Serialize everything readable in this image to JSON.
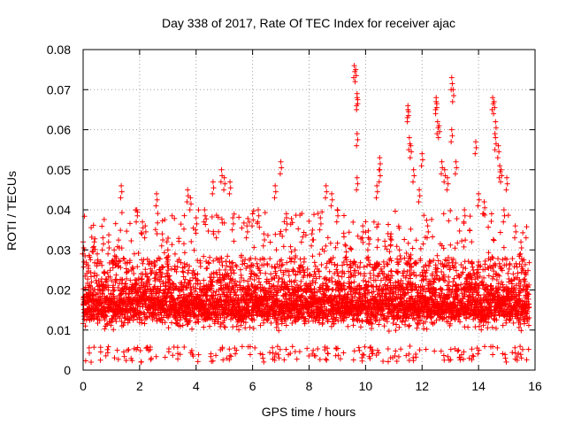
{
  "chart_data": {
    "type": "scatter",
    "title": "Day 338 of 2017, Rate Of TEC Index for receiver ajac",
    "xlabel": "GPS time / hours",
    "ylabel": "ROTI / TECUs",
    "xlim": [
      0,
      16
    ],
    "ylim": [
      0,
      0.08
    ],
    "xticks": [
      0,
      2,
      4,
      6,
      8,
      10,
      12,
      14,
      16
    ],
    "yticks": [
      0,
      0.01,
      0.02,
      0.03,
      0.04,
      0.05,
      0.06,
      0.07,
      0.08
    ],
    "xtick_labels": [
      "0",
      "2",
      "4",
      "6",
      "8",
      "10",
      "12",
      "14",
      "16"
    ],
    "ytick_labels": [
      "0",
      "0.01",
      "0.02",
      "0.03",
      "0.04",
      "0.05",
      "0.06",
      "0.07",
      "0.08"
    ],
    "grid": true,
    "marker": "plus",
    "color": "#ff0000",
    "x_range_of_data": [
      0,
      15.8
    ],
    "dense_band": {
      "y_min": 0.005,
      "y_max": 0.02,
      "typical": 0.012
    },
    "series": [
      {
        "name": "ROTI",
        "points": [
          [
            0.0,
            0.032
          ],
          [
            0.05,
            0.03
          ],
          [
            0.1,
            0.014
          ],
          [
            0.2,
            0.02
          ],
          [
            0.3,
            0.022
          ],
          [
            0.5,
            0.029
          ],
          [
            0.7,
            0.033
          ],
          [
            0.9,
            0.032
          ],
          [
            1.1,
            0.03
          ],
          [
            1.35,
            0.046
          ],
          [
            1.9,
            0.04
          ],
          [
            2.1,
            0.037
          ],
          [
            2.2,
            0.036
          ],
          [
            2.6,
            0.044
          ],
          [
            2.8,
            0.034
          ],
          [
            3.0,
            0.03
          ],
          [
            3.7,
            0.045
          ],
          [
            3.8,
            0.043
          ],
          [
            4.0,
            0.038
          ],
          [
            4.3,
            0.04
          ],
          [
            4.6,
            0.047
          ],
          [
            4.9,
            0.05
          ],
          [
            5.0,
            0.048
          ],
          [
            5.2,
            0.047
          ],
          [
            5.3,
            0.038
          ],
          [
            5.8,
            0.036
          ],
          [
            6.0,
            0.039
          ],
          [
            6.2,
            0.04
          ],
          [
            6.4,
            0.034
          ],
          [
            6.8,
            0.046
          ],
          [
            7.0,
            0.052
          ],
          [
            7.2,
            0.038
          ],
          [
            7.5,
            0.03
          ],
          [
            8.1,
            0.034
          ],
          [
            8.4,
            0.038
          ],
          [
            8.6,
            0.046
          ],
          [
            8.8,
            0.044
          ],
          [
            9.0,
            0.04
          ],
          [
            9.3,
            0.031
          ],
          [
            9.6,
            0.076
          ],
          [
            9.65,
            0.075
          ],
          [
            9.7,
            0.069
          ],
          [
            9.7,
            0.068
          ],
          [
            9.7,
            0.059
          ],
          [
            9.7,
            0.048
          ],
          [
            9.9,
            0.036
          ],
          [
            10.1,
            0.033
          ],
          [
            10.4,
            0.046
          ],
          [
            10.5,
            0.05
          ],
          [
            10.5,
            0.053
          ],
          [
            10.9,
            0.034
          ],
          [
            11.2,
            0.03
          ],
          [
            11.5,
            0.066
          ],
          [
            11.5,
            0.065
          ],
          [
            11.55,
            0.058
          ],
          [
            11.6,
            0.056
          ],
          [
            11.7,
            0.05
          ],
          [
            11.9,
            0.045
          ],
          [
            12.0,
            0.054
          ],
          [
            12.2,
            0.036
          ],
          [
            12.5,
            0.067
          ],
          [
            12.5,
            0.068
          ],
          [
            12.55,
            0.062
          ],
          [
            12.6,
            0.061
          ],
          [
            12.7,
            0.052
          ],
          [
            12.8,
            0.05
          ],
          [
            12.9,
            0.048
          ],
          [
            13.05,
            0.073
          ],
          [
            13.1,
            0.07
          ],
          [
            13.05,
            0.06
          ],
          [
            13.2,
            0.052
          ],
          [
            13.5,
            0.04
          ],
          [
            13.9,
            0.057
          ],
          [
            14.0,
            0.044
          ],
          [
            14.2,
            0.042
          ],
          [
            14.5,
            0.068
          ],
          [
            14.55,
            0.067
          ],
          [
            14.6,
            0.062
          ],
          [
            14.6,
            0.058
          ],
          [
            14.7,
            0.056
          ],
          [
            14.75,
            0.051
          ],
          [
            14.8,
            0.05
          ],
          [
            14.9,
            0.04
          ],
          [
            15.0,
            0.048
          ],
          [
            15.3,
            0.036
          ],
          [
            15.5,
            0.032
          ],
          [
            15.7,
            0.021
          ]
        ]
      }
    ]
  }
}
